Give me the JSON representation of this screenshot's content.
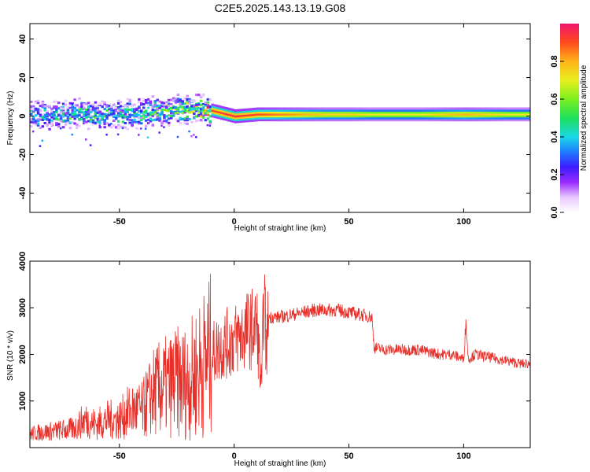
{
  "title": "C2E5.2025.143.13.19.G08",
  "chart_data": [
    {
      "type": "heatmap",
      "xlabel": "Height of straight line (km)",
      "ylabel": "Frequency (Hz)",
      "xlim": [
        -89,
        129
      ],
      "ylim": [
        -50,
        48
      ],
      "xticks": [
        -50,
        0,
        50,
        100
      ],
      "yticks": [
        -40,
        -20,
        0,
        20,
        40
      ],
      "colorbar": {
        "label": "Normalized spectral amplitude",
        "range": [
          0.0,
          1.0
        ],
        "ticks": [
          0.0,
          0.2,
          0.4,
          0.6,
          0.8
        ]
      },
      "ridge": {
        "x": [
          -89,
          -80,
          -70,
          -60,
          -50,
          -40,
          -30,
          -20,
          -10,
          0,
          10,
          20,
          30,
          40,
          50,
          60,
          70,
          80,
          90,
          100,
          110,
          120,
          129
        ],
        "freq": [
          1,
          0,
          2,
          1,
          1,
          2,
          3,
          4,
          3,
          0,
          1,
          1,
          1,
          1,
          1,
          1,
          1,
          1,
          1,
          1,
          1,
          1,
          1
        ],
        "amplitude": [
          0.45,
          0.45,
          0.5,
          0.5,
          0.45,
          0.5,
          0.55,
          0.6,
          0.9,
          0.95,
          0.9,
          0.85,
          0.8,
          0.75,
          0.75,
          0.7,
          0.7,
          0.7,
          0.75,
          0.8,
          0.75,
          0.7,
          0.7
        ]
      }
    },
    {
      "type": "line",
      "xlabel": "Height of straight line (km)",
      "ylabel": "SNR (10 * v/v)",
      "xlim": [
        -89,
        129
      ],
      "ylim": [
        0,
        4000
      ],
      "xticks": [
        -50,
        0,
        50,
        100
      ],
      "yticks": [
        1000,
        2000,
        3000,
        4000
      ],
      "series": [
        {
          "color": "#e8302a",
          "x": [
            -89,
            -80,
            -70,
            -65,
            -60,
            -55,
            -50,
            -45,
            -40,
            -35,
            -30,
            -25,
            -20,
            -15,
            -10,
            -5,
            0,
            5,
            10,
            12,
            13,
            14,
            15,
            20,
            25,
            30,
            35,
            40,
            45,
            50,
            55,
            60,
            61,
            65,
            70,
            75,
            80,
            85,
            90,
            95,
            100,
            101,
            102,
            105,
            110,
            115,
            120,
            125,
            129
          ],
          "y": [
            300,
            350,
            400,
            600,
            500,
            600,
            600,
            800,
            800,
            1200,
            1300,
            1400,
            1400,
            1700,
            2000,
            2200,
            2300,
            2500,
            2600,
            1200,
            3500,
            2000,
            2800,
            2800,
            2850,
            2900,
            2950,
            2950,
            2950,
            2900,
            2850,
            2800,
            2150,
            2100,
            2100,
            2100,
            2100,
            2050,
            2000,
            2000,
            1900,
            2700,
            1900,
            2000,
            1950,
            1900,
            1850,
            1800,
            1800
          ]
        }
      ]
    }
  ]
}
